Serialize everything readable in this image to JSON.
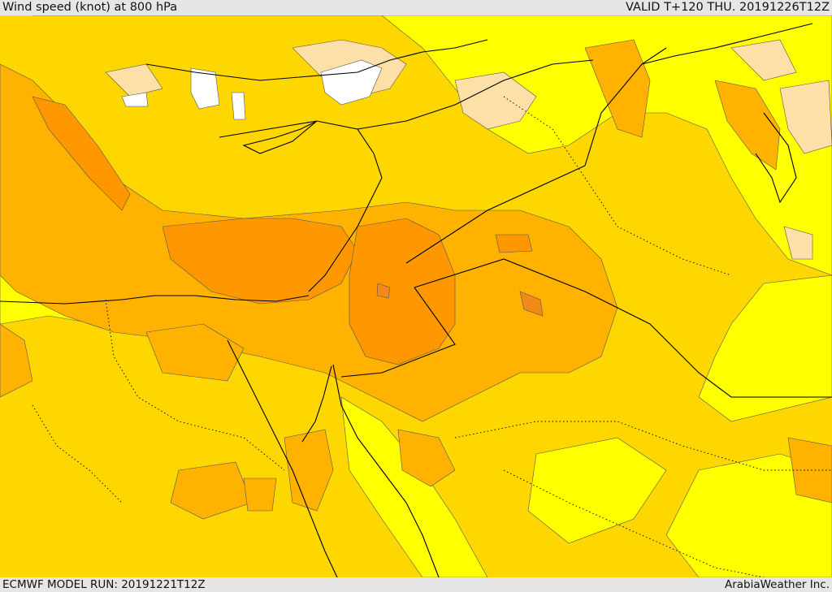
{
  "header": {
    "title": "Wind speed (knot) at 800 hPa",
    "valid": "VALID T+120 THU. 20191226T12Z"
  },
  "footer": {
    "model_run": "ECMWF MODEL RUN: 20191221T12Z",
    "credit": "ArabiaWeather Inc."
  },
  "colors": {
    "calm": "#ffffff",
    "light": "#fde0a8",
    "yellow": "#ffff00",
    "gold": "#ffd700",
    "amber": "#ffb300",
    "orange": "#ff9800",
    "dark_orange": "#f28a1a",
    "border": "#000000"
  }
}
